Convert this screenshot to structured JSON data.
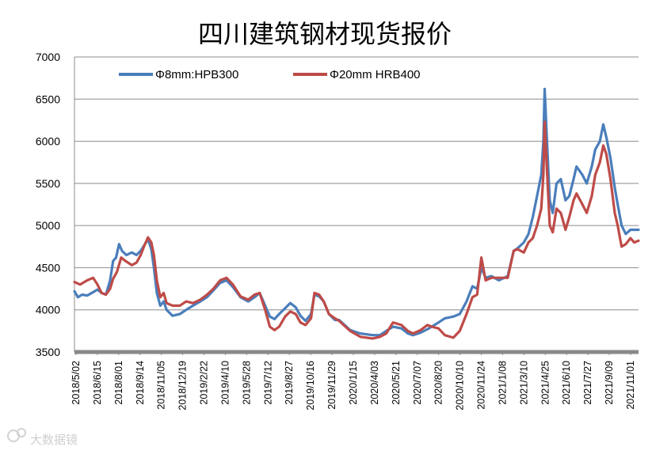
{
  "chart_data": {
    "type": "line",
    "title": "四川建筑钢材现货报价",
    "xlabel": "",
    "ylabel": "",
    "ylim": [
      3500,
      7000
    ],
    "yticks": [
      3500,
      4000,
      4500,
      5000,
      5500,
      6000,
      6500,
      7000
    ],
    "x_start": "2018-05-02",
    "x_end": "2021-12-20",
    "xtick_labels": [
      "2018/5/02",
      "2018/6/15",
      "2018/8/01",
      "2018/9/14",
      "2018/11/05",
      "2018/12/19",
      "2019/2/22",
      "2019/4/10",
      "2019/5/28",
      "2019/7/12",
      "2019/8/27",
      "2019/10/16",
      "2019/11/29",
      "2020/1/15",
      "2020/4/03",
      "2020/5/21",
      "2020/7/07",
      "2020/8/20",
      "2020/10/10",
      "2020/11/24",
      "2021/1/08",
      "2021/3/10",
      "2021/4/25",
      "2021/6/10",
      "2021/7/27",
      "2021/9/09",
      "2021/11/01"
    ],
    "legend_position": "top-left",
    "series": [
      {
        "name": "Φ8mm:HPB300",
        "color": "#4a7ebb",
        "points": [
          [
            "2018-05-02",
            4220
          ],
          [
            "2018-05-10",
            4150
          ],
          [
            "2018-05-20",
            4180
          ],
          [
            "2018-06-01",
            4170
          ],
          [
            "2018-06-15",
            4210
          ],
          [
            "2018-06-25",
            4240
          ],
          [
            "2018-07-05",
            4200
          ],
          [
            "2018-07-15",
            4180
          ],
          [
            "2018-07-25",
            4350
          ],
          [
            "2018-08-01",
            4580
          ],
          [
            "2018-08-08",
            4620
          ],
          [
            "2018-08-15",
            4780
          ],
          [
            "2018-08-22",
            4700
          ],
          [
            "2018-09-01",
            4650
          ],
          [
            "2018-09-14",
            4680
          ],
          [
            "2018-09-25",
            4650
          ],
          [
            "2018-10-05",
            4700
          ],
          [
            "2018-10-15",
            4780
          ],
          [
            "2018-10-22",
            4840
          ],
          [
            "2018-10-30",
            4720
          ],
          [
            "2018-11-05",
            4500
          ],
          [
            "2018-11-12",
            4200
          ],
          [
            "2018-11-20",
            4050
          ],
          [
            "2018-11-28",
            4100
          ],
          [
            "2018-12-05",
            4000
          ],
          [
            "2018-12-19",
            3930
          ],
          [
            "2019-01-05",
            3950
          ],
          [
            "2019-01-20",
            4000
          ],
          [
            "2019-02-05",
            4050
          ],
          [
            "2019-02-22",
            4100
          ],
          [
            "2019-03-10",
            4150
          ],
          [
            "2019-03-25",
            4230
          ],
          [
            "2019-04-10",
            4320
          ],
          [
            "2019-04-25",
            4350
          ],
          [
            "2019-05-10",
            4270
          ],
          [
            "2019-05-28",
            4150
          ],
          [
            "2019-06-15",
            4100
          ],
          [
            "2019-06-30",
            4150
          ],
          [
            "2019-07-12",
            4200
          ],
          [
            "2019-07-25",
            4050
          ],
          [
            "2019-08-05",
            3920
          ],
          [
            "2019-08-16",
            3890
          ],
          [
            "2019-08-27",
            3950
          ],
          [
            "2019-09-10",
            4020
          ],
          [
            "2019-09-22",
            4080
          ],
          [
            "2019-10-05",
            4030
          ],
          [
            "2019-10-16",
            3930
          ],
          [
            "2019-10-28",
            3870
          ],
          [
            "2019-11-10",
            3950
          ],
          [
            "2019-11-18",
            4180
          ],
          [
            "2019-11-29",
            4160
          ],
          [
            "2019-12-10",
            4100
          ],
          [
            "2019-12-22",
            3950
          ],
          [
            "2020-01-05",
            3880
          ],
          [
            "2020-01-15",
            3880
          ],
          [
            "2020-02-10",
            3760
          ],
          [
            "2020-03-05",
            3720
          ],
          [
            "2020-04-03",
            3700
          ],
          [
            "2020-04-20",
            3700
          ],
          [
            "2020-05-05",
            3750
          ],
          [
            "2020-05-21",
            3800
          ],
          [
            "2020-06-10",
            3780
          ],
          [
            "2020-06-25",
            3720
          ],
          [
            "2020-07-07",
            3700
          ],
          [
            "2020-07-25",
            3730
          ],
          [
            "2020-08-10",
            3770
          ],
          [
            "2020-08-20",
            3800
          ],
          [
            "2020-09-05",
            3850
          ],
          [
            "2020-09-20",
            3900
          ],
          [
            "2020-10-10",
            3920
          ],
          [
            "2020-10-25",
            3950
          ],
          [
            "2020-11-10",
            4100
          ],
          [
            "2020-11-24",
            4280
          ],
          [
            "2020-12-05",
            4250
          ],
          [
            "2020-12-15",
            4500
          ],
          [
            "2020-12-25",
            4380
          ],
          [
            "2021-01-08",
            4400
          ],
          [
            "2021-01-25",
            4350
          ],
          [
            "2021-02-15",
            4400
          ],
          [
            "2021-03-01",
            4700
          ],
          [
            "2021-03-10",
            4730
          ],
          [
            "2021-03-25",
            4800
          ],
          [
            "2021-04-05",
            4900
          ],
          [
            "2021-04-15",
            5100
          ],
          [
            "2021-04-25",
            5350
          ],
          [
            "2021-05-05",
            5600
          ],
          [
            "2021-05-10",
            6000
          ],
          [
            "2021-05-13",
            6620
          ],
          [
            "2021-05-18",
            6050
          ],
          [
            "2021-05-25",
            5300
          ],
          [
            "2021-06-01",
            5150
          ],
          [
            "2021-06-10",
            5500
          ],
          [
            "2021-06-20",
            5550
          ],
          [
            "2021-07-01",
            5300
          ],
          [
            "2021-07-10",
            5350
          ],
          [
            "2021-07-20",
            5550
          ],
          [
            "2021-07-27",
            5700
          ],
          [
            "2021-08-10",
            5600
          ],
          [
            "2021-08-20",
            5500
          ],
          [
            "2021-09-01",
            5700
          ],
          [
            "2021-09-09",
            5900
          ],
          [
            "2021-09-20",
            6000
          ],
          [
            "2021-09-28",
            6200
          ],
          [
            "2021-10-05",
            6050
          ],
          [
            "2021-10-15",
            5800
          ],
          [
            "2021-10-25",
            5450
          ],
          [
            "2021-11-01",
            5250
          ],
          [
            "2021-11-10",
            5000
          ],
          [
            "2021-11-20",
            4900
          ],
          [
            "2021-12-01",
            4950
          ],
          [
            "2021-12-10",
            4950
          ],
          [
            "2021-12-20",
            4950
          ]
        ]
      },
      {
        "name": "Φ20mm HRB400",
        "color": "#be4b48",
        "points": [
          [
            "2018-05-02",
            4330
          ],
          [
            "2018-05-15",
            4300
          ],
          [
            "2018-06-01",
            4350
          ],
          [
            "2018-06-15",
            4380
          ],
          [
            "2018-06-25",
            4300
          ],
          [
            "2018-07-05",
            4200
          ],
          [
            "2018-07-15",
            4180
          ],
          [
            "2018-07-25",
            4250
          ],
          [
            "2018-08-01",
            4370
          ],
          [
            "2018-08-10",
            4450
          ],
          [
            "2018-08-20",
            4620
          ],
          [
            "2018-08-30",
            4580
          ],
          [
            "2018-09-14",
            4530
          ],
          [
            "2018-09-25",
            4560
          ],
          [
            "2018-10-05",
            4650
          ],
          [
            "2018-10-15",
            4780
          ],
          [
            "2018-10-22",
            4860
          ],
          [
            "2018-10-30",
            4800
          ],
          [
            "2018-11-05",
            4650
          ],
          [
            "2018-11-12",
            4350
          ],
          [
            "2018-11-20",
            4150
          ],
          [
            "2018-11-28",
            4200
          ],
          [
            "2018-12-05",
            4080
          ],
          [
            "2018-12-19",
            4050
          ],
          [
            "2019-01-05",
            4050
          ],
          [
            "2019-01-20",
            4100
          ],
          [
            "2019-02-05",
            4080
          ],
          [
            "2019-02-22",
            4120
          ],
          [
            "2019-03-10",
            4180
          ],
          [
            "2019-03-25",
            4250
          ],
          [
            "2019-04-10",
            4350
          ],
          [
            "2019-04-25",
            4380
          ],
          [
            "2019-05-10",
            4300
          ],
          [
            "2019-05-28",
            4160
          ],
          [
            "2019-06-15",
            4120
          ],
          [
            "2019-06-30",
            4180
          ],
          [
            "2019-07-12",
            4200
          ],
          [
            "2019-07-25",
            4000
          ],
          [
            "2019-08-05",
            3800
          ],
          [
            "2019-08-16",
            3760
          ],
          [
            "2019-08-27",
            3800
          ],
          [
            "2019-09-10",
            3920
          ],
          [
            "2019-09-22",
            3980
          ],
          [
            "2019-10-05",
            3950
          ],
          [
            "2019-10-16",
            3850
          ],
          [
            "2019-10-28",
            3820
          ],
          [
            "2019-11-10",
            3900
          ],
          [
            "2019-11-18",
            4200
          ],
          [
            "2019-11-29",
            4180
          ],
          [
            "2019-12-10",
            4100
          ],
          [
            "2019-12-22",
            3950
          ],
          [
            "2020-01-05",
            3900
          ],
          [
            "2020-01-15",
            3870
          ],
          [
            "2020-02-10",
            3750
          ],
          [
            "2020-03-05",
            3680
          ],
          [
            "2020-04-03",
            3660
          ],
          [
            "2020-04-20",
            3680
          ],
          [
            "2020-05-05",
            3720
          ],
          [
            "2020-05-21",
            3850
          ],
          [
            "2020-06-10",
            3820
          ],
          [
            "2020-06-25",
            3750
          ],
          [
            "2020-07-07",
            3720
          ],
          [
            "2020-07-25",
            3760
          ],
          [
            "2020-08-10",
            3820
          ],
          [
            "2020-08-20",
            3800
          ],
          [
            "2020-09-05",
            3780
          ],
          [
            "2020-09-20",
            3700
          ],
          [
            "2020-10-10",
            3670
          ],
          [
            "2020-10-25",
            3750
          ],
          [
            "2020-11-10",
            3950
          ],
          [
            "2020-11-24",
            4150
          ],
          [
            "2020-12-05",
            4180
          ],
          [
            "2020-12-15",
            4620
          ],
          [
            "2020-12-25",
            4350
          ],
          [
            "2021-01-08",
            4380
          ],
          [
            "2021-01-25",
            4380
          ],
          [
            "2021-02-15",
            4380
          ],
          [
            "2021-03-01",
            4700
          ],
          [
            "2021-03-10",
            4720
          ],
          [
            "2021-03-25",
            4680
          ],
          [
            "2021-04-05",
            4800
          ],
          [
            "2021-04-15",
            4850
          ],
          [
            "2021-04-25",
            5000
          ],
          [
            "2021-05-05",
            5200
          ],
          [
            "2021-05-10",
            5600
          ],
          [
            "2021-05-13",
            6230
          ],
          [
            "2021-05-18",
            5700
          ],
          [
            "2021-05-25",
            5000
          ],
          [
            "2021-06-01",
            4920
          ],
          [
            "2021-06-10",
            5200
          ],
          [
            "2021-06-20",
            5150
          ],
          [
            "2021-07-01",
            4950
          ],
          [
            "2021-07-10",
            5100
          ],
          [
            "2021-07-20",
            5300
          ],
          [
            "2021-07-27",
            5380
          ],
          [
            "2021-08-10",
            5250
          ],
          [
            "2021-08-20",
            5150
          ],
          [
            "2021-09-01",
            5350
          ],
          [
            "2021-09-09",
            5600
          ],
          [
            "2021-09-20",
            5750
          ],
          [
            "2021-09-28",
            5950
          ],
          [
            "2021-10-05",
            5850
          ],
          [
            "2021-10-15",
            5550
          ],
          [
            "2021-10-25",
            5150
          ],
          [
            "2021-11-01",
            5000
          ],
          [
            "2021-11-10",
            4750
          ],
          [
            "2021-11-20",
            4780
          ],
          [
            "2021-12-01",
            4850
          ],
          [
            "2021-12-10",
            4800
          ],
          [
            "2021-12-20",
            4820
          ]
        ]
      }
    ]
  },
  "watermark": "大数据镜"
}
